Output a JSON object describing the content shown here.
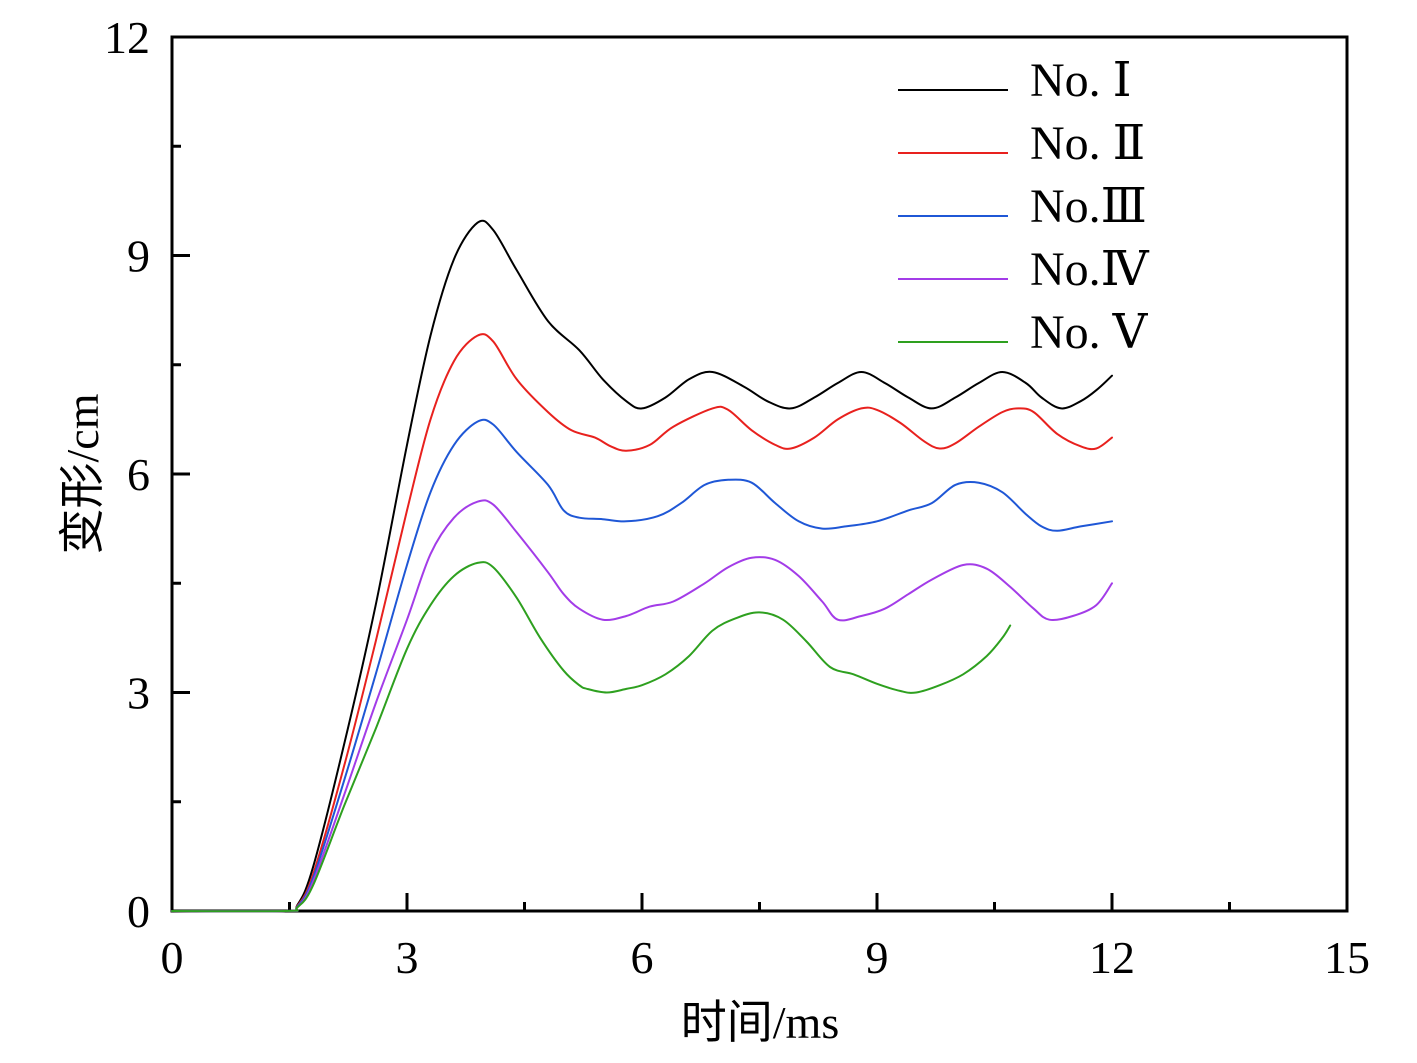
{
  "chart_data": {
    "type": "line",
    "title": "",
    "xlabel": "时间/ms",
    "ylabel": "变形/cm",
    "xlim": [
      0,
      15
    ],
    "ylim": [
      0,
      12
    ],
    "x_ticks": [
      0,
      3,
      6,
      9,
      12,
      15
    ],
    "x_tick_labels": [
      "0",
      "3",
      "6",
      "9",
      "12",
      "15"
    ],
    "x_minor_ticks": [
      1.5,
      4.5,
      7.5,
      10.5,
      13.5
    ],
    "y_ticks": [
      0,
      3,
      6,
      9,
      12
    ],
    "y_tick_labels": [
      "0",
      "3",
      "6",
      "9",
      "12"
    ],
    "y_minor_ticks": [
      1.5,
      4.5,
      7.5,
      10.5
    ],
    "grid": false,
    "legend_position": "top-right",
    "series": [
      {
        "name": "No. Ⅰ",
        "color": "#000000",
        "points": [
          [
            0,
            0
          ],
          [
            1.45,
            0
          ],
          [
            1.6,
            0.08
          ],
          [
            1.8,
            0.6
          ],
          [
            2.2,
            2.3
          ],
          [
            2.6,
            4.2
          ],
          [
            3.0,
            6.4
          ],
          [
            3.3,
            7.9
          ],
          [
            3.6,
            8.95
          ],
          [
            3.9,
            9.45
          ],
          [
            4.1,
            9.35
          ],
          [
            4.4,
            8.8
          ],
          [
            4.8,
            8.1
          ],
          [
            5.2,
            7.7
          ],
          [
            5.5,
            7.3
          ],
          [
            5.8,
            7.0
          ],
          [
            6.0,
            6.9
          ],
          [
            6.3,
            7.05
          ],
          [
            6.6,
            7.3
          ],
          [
            6.9,
            7.4
          ],
          [
            7.3,
            7.2
          ],
          [
            7.6,
            7.0
          ],
          [
            7.9,
            6.9
          ],
          [
            8.2,
            7.05
          ],
          [
            8.5,
            7.25
          ],
          [
            8.8,
            7.4
          ],
          [
            9.1,
            7.25
          ],
          [
            9.4,
            7.05
          ],
          [
            9.7,
            6.9
          ],
          [
            10.0,
            7.05
          ],
          [
            10.3,
            7.25
          ],
          [
            10.6,
            7.4
          ],
          [
            10.9,
            7.25
          ],
          [
            11.1,
            7.05
          ],
          [
            11.35,
            6.9
          ],
          [
            11.6,
            7.0
          ],
          [
            11.8,
            7.15
          ],
          [
            12.0,
            7.35
          ]
        ]
      },
      {
        "name": "No. Ⅱ",
        "color": "#e8211e",
        "points": [
          [
            0,
            0
          ],
          [
            1.45,
            0
          ],
          [
            1.6,
            0.07
          ],
          [
            1.8,
            0.5
          ],
          [
            2.2,
            2.0
          ],
          [
            2.6,
            3.7
          ],
          [
            3.0,
            5.5
          ],
          [
            3.3,
            6.75
          ],
          [
            3.6,
            7.55
          ],
          [
            3.9,
            7.9
          ],
          [
            4.1,
            7.82
          ],
          [
            4.4,
            7.3
          ],
          [
            4.8,
            6.85
          ],
          [
            5.1,
            6.6
          ],
          [
            5.4,
            6.5
          ],
          [
            5.6,
            6.38
          ],
          [
            5.8,
            6.32
          ],
          [
            6.1,
            6.4
          ],
          [
            6.4,
            6.65
          ],
          [
            6.9,
            6.9
          ],
          [
            7.1,
            6.88
          ],
          [
            7.4,
            6.6
          ],
          [
            7.7,
            6.4
          ],
          [
            7.9,
            6.35
          ],
          [
            8.2,
            6.5
          ],
          [
            8.5,
            6.75
          ],
          [
            8.8,
            6.9
          ],
          [
            9.0,
            6.88
          ],
          [
            9.3,
            6.7
          ],
          [
            9.6,
            6.45
          ],
          [
            9.8,
            6.35
          ],
          [
            10.0,
            6.42
          ],
          [
            10.3,
            6.65
          ],
          [
            10.6,
            6.85
          ],
          [
            10.8,
            6.9
          ],
          [
            11.0,
            6.85
          ],
          [
            11.3,
            6.55
          ],
          [
            11.6,
            6.38
          ],
          [
            11.8,
            6.35
          ],
          [
            12.0,
            6.5
          ]
        ]
      },
      {
        "name": "No.Ⅲ",
        "color": "#1f57d6",
        "points": [
          [
            0,
            0
          ],
          [
            1.45,
            0
          ],
          [
            1.6,
            0.06
          ],
          [
            1.8,
            0.45
          ],
          [
            2.2,
            1.8
          ],
          [
            2.6,
            3.25
          ],
          [
            3.0,
            4.75
          ],
          [
            3.3,
            5.75
          ],
          [
            3.6,
            6.4
          ],
          [
            3.9,
            6.72
          ],
          [
            4.1,
            6.68
          ],
          [
            4.4,
            6.3
          ],
          [
            4.8,
            5.85
          ],
          [
            5.0,
            5.5
          ],
          [
            5.2,
            5.4
          ],
          [
            5.5,
            5.38
          ],
          [
            5.8,
            5.35
          ],
          [
            6.2,
            5.42
          ],
          [
            6.5,
            5.6
          ],
          [
            6.8,
            5.85
          ],
          [
            7.1,
            5.92
          ],
          [
            7.4,
            5.88
          ],
          [
            7.7,
            5.6
          ],
          [
            8.0,
            5.35
          ],
          [
            8.3,
            5.25
          ],
          [
            8.6,
            5.28
          ],
          [
            9.0,
            5.35
          ],
          [
            9.4,
            5.5
          ],
          [
            9.7,
            5.6
          ],
          [
            10.0,
            5.85
          ],
          [
            10.3,
            5.88
          ],
          [
            10.6,
            5.75
          ],
          [
            10.9,
            5.45
          ],
          [
            11.1,
            5.28
          ],
          [
            11.3,
            5.22
          ],
          [
            11.6,
            5.28
          ],
          [
            12.0,
            5.35
          ]
        ]
      },
      {
        "name": "No.Ⅳ",
        "color": "#a33ce8",
        "points": [
          [
            0,
            0
          ],
          [
            1.45,
            0
          ],
          [
            1.6,
            0.05
          ],
          [
            1.8,
            0.4
          ],
          [
            2.2,
            1.6
          ],
          [
            2.6,
            2.85
          ],
          [
            3.0,
            4.0
          ],
          [
            3.3,
            4.9
          ],
          [
            3.6,
            5.4
          ],
          [
            3.9,
            5.62
          ],
          [
            4.1,
            5.58
          ],
          [
            4.4,
            5.2
          ],
          [
            4.8,
            4.65
          ],
          [
            5.0,
            4.35
          ],
          [
            5.2,
            4.15
          ],
          [
            5.5,
            4.0
          ],
          [
            5.8,
            4.05
          ],
          [
            6.1,
            4.18
          ],
          [
            6.4,
            4.25
          ],
          [
            6.8,
            4.5
          ],
          [
            7.1,
            4.72
          ],
          [
            7.4,
            4.85
          ],
          [
            7.7,
            4.82
          ],
          [
            8.0,
            4.6
          ],
          [
            8.3,
            4.25
          ],
          [
            8.5,
            4.0
          ],
          [
            8.8,
            4.05
          ],
          [
            9.1,
            4.15
          ],
          [
            9.4,
            4.35
          ],
          [
            9.7,
            4.55
          ],
          [
            10.1,
            4.75
          ],
          [
            10.4,
            4.7
          ],
          [
            10.7,
            4.45
          ],
          [
            11.0,
            4.15
          ],
          [
            11.2,
            4.0
          ],
          [
            11.5,
            4.05
          ],
          [
            11.8,
            4.2
          ],
          [
            12.0,
            4.5
          ]
        ]
      },
      {
        "name": "No. Ⅴ",
        "color": "#2ea01f",
        "points": [
          [
            0,
            0
          ],
          [
            1.45,
            0
          ],
          [
            1.6,
            0.05
          ],
          [
            1.8,
            0.35
          ],
          [
            2.2,
            1.45
          ],
          [
            2.6,
            2.5
          ],
          [
            3.0,
            3.6
          ],
          [
            3.3,
            4.2
          ],
          [
            3.6,
            4.6
          ],
          [
            3.9,
            4.78
          ],
          [
            4.1,
            4.72
          ],
          [
            4.4,
            4.3
          ],
          [
            4.7,
            3.75
          ],
          [
            5.0,
            3.3
          ],
          [
            5.2,
            3.1
          ],
          [
            5.3,
            3.05
          ],
          [
            5.55,
            3.0
          ],
          [
            5.8,
            3.05
          ],
          [
            6.0,
            3.1
          ],
          [
            6.3,
            3.25
          ],
          [
            6.6,
            3.5
          ],
          [
            6.9,
            3.85
          ],
          [
            7.2,
            4.02
          ],
          [
            7.5,
            4.1
          ],
          [
            7.8,
            4.0
          ],
          [
            8.1,
            3.7
          ],
          [
            8.4,
            3.35
          ],
          [
            8.7,
            3.25
          ],
          [
            9.0,
            3.12
          ],
          [
            9.3,
            3.02
          ],
          [
            9.5,
            3.0
          ],
          [
            9.8,
            3.1
          ],
          [
            10.1,
            3.25
          ],
          [
            10.4,
            3.5
          ],
          [
            10.6,
            3.75
          ],
          [
            10.7,
            3.92
          ]
        ]
      }
    ]
  }
}
